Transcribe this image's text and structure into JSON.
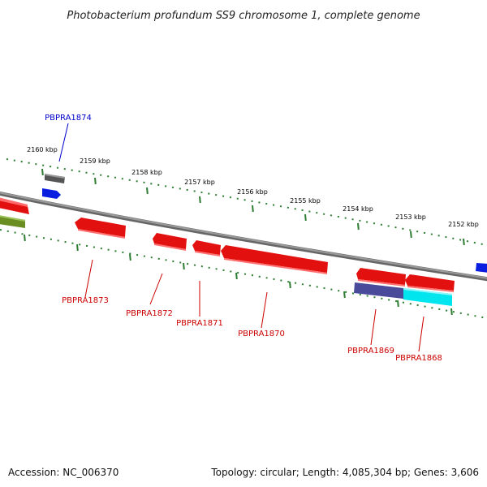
{
  "title": "Photobacterium profundum SS9 chromosome 1, complete genome",
  "footer": {
    "accession": "Accession: NC_006370",
    "stats": "Topology: circular; Length: 4,085,304 bp; Genes: 3,606"
  },
  "kbp_labels": [
    "2160 kbp",
    "2159 kbp",
    "2158 kbp",
    "2157 kbp",
    "2156 kbp",
    "2155 kbp",
    "2154 kbp",
    "2153 kbp",
    "2152 kbp"
  ],
  "gene_labels": [
    "PBPRA1874",
    "PBPRA1873",
    "PBPRA1872",
    "PBPRA1871",
    "PBPRA1870",
    "PBPRA1869",
    "PBPRA1868"
  ],
  "colors": {
    "forward_label": "#0000cc",
    "reverse_label": "#cc0000",
    "backbone": "#888888",
    "ticks": "#2e7d32",
    "gene_red": "#e31010",
    "gene_blue": "#0a1ee0",
    "gene_gray": "#666666",
    "gene_olive": "#6b8e23",
    "feature_purple": "#4a4a9a",
    "feature_cyan": "#00e5ee"
  }
}
